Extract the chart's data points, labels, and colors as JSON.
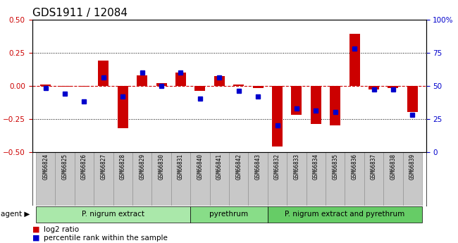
{
  "title": "GDS1911 / 12084",
  "samples": [
    "GSM66824",
    "GSM66825",
    "GSM66826",
    "GSM66827",
    "GSM66828",
    "GSM66829",
    "GSM66830",
    "GSM66831",
    "GSM66840",
    "GSM66841",
    "GSM66842",
    "GSM66843",
    "GSM66832",
    "GSM66833",
    "GSM66834",
    "GSM66835",
    "GSM66836",
    "GSM66837",
    "GSM66838",
    "GSM66839"
  ],
  "log2_ratio": [
    0.01,
    -0.01,
    -0.01,
    0.19,
    -0.32,
    0.08,
    0.02,
    0.1,
    -0.04,
    0.07,
    0.01,
    -0.02,
    -0.46,
    -0.22,
    -0.29,
    -0.3,
    0.39,
    -0.03,
    -0.02,
    -0.2
  ],
  "percentile": [
    48,
    44,
    38,
    56,
    42,
    60,
    50,
    60,
    40,
    56,
    46,
    42,
    20,
    33,
    31,
    30,
    78,
    47,
    47,
    28
  ],
  "groups": [
    {
      "label": "P. nigrum extract",
      "start": 0,
      "end": 8,
      "color": "#aae8aa"
    },
    {
      "label": "pyrethrum",
      "start": 8,
      "end": 12,
      "color": "#88dd88"
    },
    {
      "label": "P. nigrum extract and pyrethrum",
      "start": 12,
      "end": 20,
      "color": "#66cc66"
    }
  ],
  "ylim_left": [
    -0.5,
    0.5
  ],
  "ylim_right": [
    0,
    100
  ],
  "bar_color": "#cc0000",
  "square_color": "#0000cc",
  "zero_line_color": "#cc0000",
  "background_color": "#ffffff",
  "yticks_left": [
    -0.5,
    -0.25,
    0.0,
    0.25,
    0.5
  ],
  "yticks_right": [
    0,
    25,
    50,
    75,
    100
  ],
  "bar_width": 0.55,
  "square_size": 4,
  "cell_bg": "#c8c8c8",
  "cell_edge": "#888888"
}
